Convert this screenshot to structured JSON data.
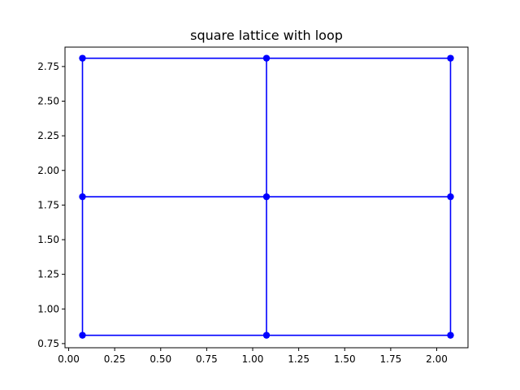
{
  "chart_data": {
    "type": "scatter",
    "title": "square lattice with loop",
    "xlabel": "",
    "ylabel": "",
    "xlim": [
      -0.02,
      2.17
    ],
    "ylim": [
      0.72,
      2.89
    ],
    "xticks": [
      0.0,
      0.25,
      0.5,
      0.75,
      1.0,
      1.25,
      1.5,
      1.75,
      2.0
    ],
    "xtick_labels": [
      "0.00",
      "0.25",
      "0.50",
      "0.75",
      "1.00",
      "1.25",
      "1.50",
      "1.75",
      "2.00"
    ],
    "yticks": [
      0.75,
      1.0,
      1.25,
      1.5,
      1.75,
      2.0,
      2.25,
      2.5,
      2.75
    ],
    "ytick_labels": [
      "0.75",
      "1.00",
      "1.25",
      "1.50",
      "1.75",
      "2.00",
      "2.25",
      "2.50",
      "2.75"
    ],
    "grid": false,
    "color": "#0000ff",
    "nodes": [
      {
        "x": 0.075,
        "y": 0.81
      },
      {
        "x": 1.075,
        "y": 0.81
      },
      {
        "x": 2.075,
        "y": 0.81
      },
      {
        "x": 0.075,
        "y": 1.81
      },
      {
        "x": 1.075,
        "y": 1.81
      },
      {
        "x": 2.075,
        "y": 1.81
      },
      {
        "x": 0.075,
        "y": 2.81
      },
      {
        "x": 1.075,
        "y": 2.81
      },
      {
        "x": 2.075,
        "y": 2.81
      }
    ],
    "edges": [
      [
        0,
        1
      ],
      [
        1,
        2
      ],
      [
        3,
        4
      ],
      [
        4,
        5
      ],
      [
        6,
        7
      ],
      [
        7,
        8
      ],
      [
        0,
        3
      ],
      [
        3,
        6
      ],
      [
        1,
        4
      ],
      [
        4,
        7
      ],
      [
        2,
        5
      ],
      [
        5,
        8
      ]
    ]
  }
}
